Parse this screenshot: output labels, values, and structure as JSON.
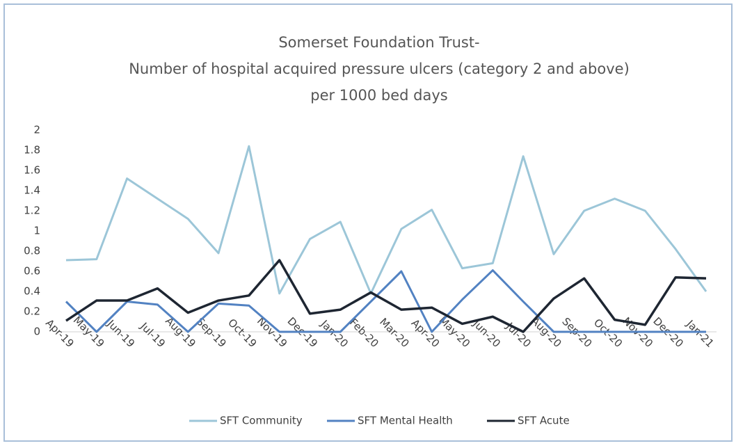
{
  "chart_data": {
    "type": "line",
    "title": [
      "Somerset Foundation Trust-",
      "Number of hospital acquired pressure ulcers (category 2 and above)",
      "per 1000 bed days"
    ],
    "categories": [
      "Apr-19",
      "May-19",
      "Jun-19",
      "Jul-19",
      "Aug-19",
      "Sep-19",
      "Oct-19",
      "Nov-19",
      "Dec-19",
      "Jan-20",
      "Feb-20",
      "Mar-20",
      "Apr-20",
      "May-20",
      "Jun-20",
      "Jul-20",
      "Aug-20",
      "Sep-20",
      "Oct-20",
      "Nov-20",
      "Dec-20",
      "Jan-21"
    ],
    "series": [
      {
        "name": "SFT Community",
        "color": "#9cc6d8",
        "values": [
          0.71,
          0.72,
          1.52,
          1.32,
          1.12,
          0.78,
          1.84,
          0.38,
          0.92,
          1.09,
          0.38,
          1.02,
          1.21,
          0.63,
          0.68,
          1.74,
          0.77,
          1.2,
          1.32,
          1.2,
          0.82,
          0.4
        ]
      },
      {
        "name": "SFT Mental Health",
        "color": "#5282c2",
        "values": [
          0.3,
          0,
          0.3,
          0.27,
          0,
          0.28,
          0.26,
          0,
          0,
          0,
          0.3,
          0.6,
          0,
          0.32,
          0.61,
          0.3,
          0,
          0,
          0,
          0,
          0,
          0
        ]
      },
      {
        "name": "SFT Acute",
        "color": "#1e2632",
        "values": [
          0.11,
          0.31,
          0.31,
          0.43,
          0.19,
          0.31,
          0.36,
          0.71,
          0.18,
          0.22,
          0.39,
          0.22,
          0.24,
          0.08,
          0.15,
          0,
          0.33,
          0.53,
          0.12,
          0.07,
          0.54,
          0.53
        ]
      }
    ],
    "ylim": [
      0,
      2
    ],
    "yticks": [
      0,
      0.2,
      0.4,
      0.6,
      0.8,
      1,
      1.2,
      1.4,
      1.6,
      1.8,
      2
    ],
    "grid": false,
    "legend": "bottom"
  }
}
